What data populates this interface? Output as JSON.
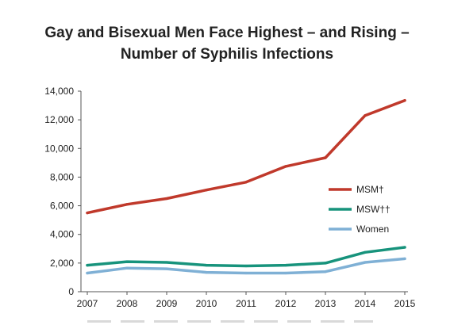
{
  "chart_data": {
    "type": "line",
    "title_lines": [
      "Gay and Bisexual Men Face Highest – and Rising –",
      "Number of Syphilis Infections"
    ],
    "x": [
      "2007",
      "2008",
      "2009",
      "2010",
      "2011",
      "2012",
      "2013",
      "2014",
      "2015"
    ],
    "yticks": [
      "0",
      "2,000",
      "4,000",
      "6,000",
      "8,000",
      "10,000",
      "12,000",
      "14,000"
    ],
    "ylim": [
      0,
      14000
    ],
    "xlabel": "",
    "ylabel": "",
    "grid": false,
    "legend_position": "right",
    "series": [
      {
        "name": "MSM†",
        "color": "#c0392b",
        "values": [
          5500,
          6100,
          6500,
          7100,
          7650,
          8750,
          9350,
          12300,
          13350
        ]
      },
      {
        "name": "MSW††",
        "color": "#17937c",
        "values": [
          1850,
          2100,
          2050,
          1850,
          1800,
          1850,
          2000,
          2750,
          3100
        ]
      },
      {
        "name": "Women",
        "color": "#7fb0d5",
        "values": [
          1300,
          1650,
          1600,
          1350,
          1300,
          1300,
          1400,
          2050,
          2300
        ]
      }
    ]
  }
}
